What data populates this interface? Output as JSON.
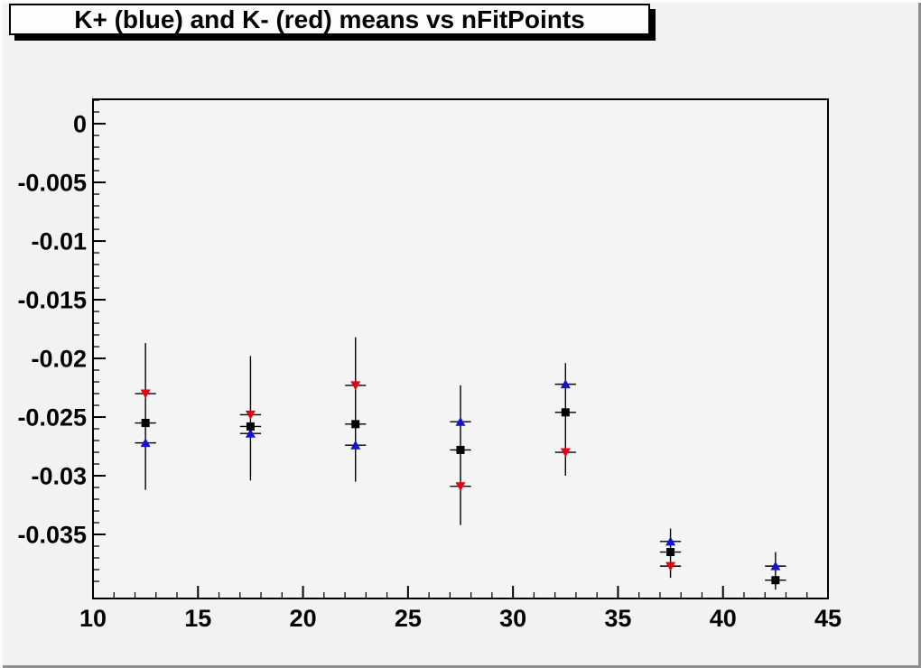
{
  "colors": {
    "canvas_bg": "#f2f2f2",
    "frame_bg": "#f4f4f4",
    "axis": "#000000",
    "title_bg": "#fdfdfd",
    "kplus_blue": "#1414cc",
    "kminus_red": "#e60012",
    "black_series": "#000000"
  },
  "chart_data": {
    "type": "scatter",
    "title": "K+ (blue) and K- (red) means vs nFitPoints",
    "xlabel": "",
    "ylabel": "",
    "xlim": [
      10,
      45
    ],
    "ylim": [
      -0.04046,
      0.00208
    ],
    "x_ticks": [
      10,
      15,
      20,
      25,
      30,
      35,
      40,
      45
    ],
    "x_tick_labels": [
      "10",
      "15",
      "20",
      "25",
      "30",
      "35",
      "40",
      "45"
    ],
    "x_minor_step": 1,
    "y_ticks": [
      0,
      -0.005,
      -0.01,
      -0.015,
      -0.02,
      -0.025,
      -0.03,
      -0.035
    ],
    "y_tick_labels": [
      "0",
      "-0.005",
      "-0.01",
      "-0.015",
      "-0.02",
      "-0.025",
      "-0.03",
      "-0.035"
    ],
    "y_minor_step": 0.001,
    "grid": false,
    "legend": "none",
    "x": [
      12.5,
      17.5,
      22.5,
      27.5,
      32.5,
      37.5,
      42.5
    ],
    "x_error": 0.5,
    "series": [
      {
        "name": "K+ (blue)",
        "marker": "triangle-up",
        "color": "#1414cc",
        "values": [
          -0.0272,
          -0.0264,
          -0.0274,
          -0.0254,
          -0.0222,
          -0.0356,
          -0.0377
        ]
      },
      {
        "name": "K- (red)",
        "marker": "triangle-down",
        "color": "#e60012",
        "values": [
          -0.023,
          -0.0248,
          -0.0223,
          -0.0309,
          -0.028,
          -0.0377,
          null
        ]
      },
      {
        "name": "black",
        "marker": "square",
        "color": "#000000",
        "values": [
          -0.0255,
          -0.0258,
          -0.0256,
          -0.0278,
          -0.0246,
          -0.0365,
          -0.0389
        ]
      }
    ],
    "error_bars": [
      {
        "lo": -0.0312,
        "hi": -0.0187
      },
      {
        "lo": -0.0304,
        "hi": -0.0198
      },
      {
        "lo": -0.0305,
        "hi": -0.0182
      },
      {
        "lo": -0.0342,
        "hi": -0.0223
      },
      {
        "lo": -0.03,
        "hi": -0.0204
      },
      {
        "lo": -0.0387,
        "hi": -0.0345
      },
      {
        "lo": -0.0397,
        "hi": -0.0365
      }
    ]
  }
}
